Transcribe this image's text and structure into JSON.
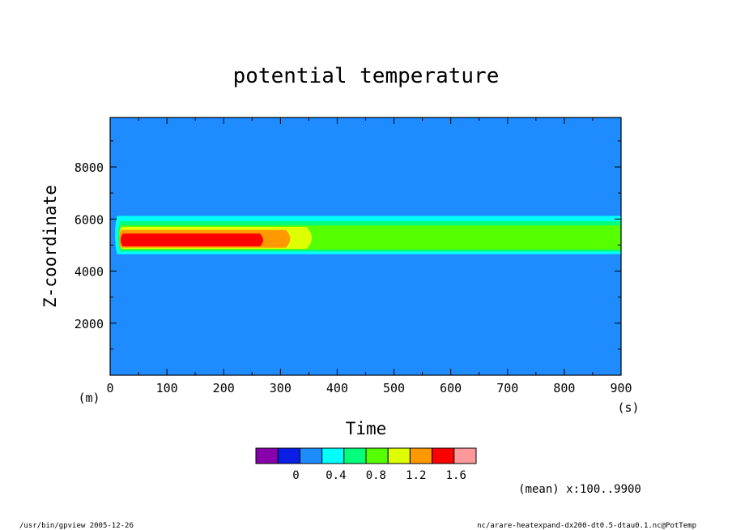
{
  "chart_data": {
    "type": "heatmap",
    "title": "potential temperature",
    "xlabel": "Time",
    "ylabel": "Z-coordinate",
    "xunit": "(s)",
    "yunit": "(m)",
    "xlim": [
      0,
      900
    ],
    "ylim": [
      0,
      9900
    ],
    "xticks": [
      "0",
      "100",
      "200",
      "300",
      "400",
      "500",
      "600",
      "700",
      "800",
      "900"
    ],
    "yticks": [
      "2000",
      "4000",
      "6000",
      "8000"
    ],
    "colorbar": {
      "levels": [
        -0.4,
        -0.2,
        0,
        0.2,
        0.4,
        0.6,
        0.8,
        1.0,
        1.2,
        1.4,
        1.6,
        1.8
      ],
      "labels": [
        "0",
        "0.4",
        "0.8",
        "1.2",
        "1.6"
      ],
      "colors": [
        "#8800aa",
        "#0a1ee6",
        "#1e8cff",
        "#00ffff",
        "#00ff7a",
        "#55ff00",
        "#ddff00",
        "#ff9900",
        "#ff0000",
        "#ff9999"
      ]
    },
    "background_value": 0.1,
    "contour_regions": [
      {
        "value_range": [
          0.2,
          0.4
        ],
        "color": "#1e8cff",
        "time_start": 0,
        "time_end": 900,
        "z_bottom": 4550,
        "z_top": 6300
      },
      {
        "value_range": [
          0.4,
          0.6
        ],
        "color": "#00ffff",
        "time_start": 5,
        "time_end": 900,
        "z_bottom": 4650,
        "z_top": 6120
      },
      {
        "value_range": [
          0.6,
          0.8
        ],
        "color": "#00ff7a",
        "time_start": 10,
        "time_end": 900,
        "z_bottom": 4750,
        "z_top": 5920
      },
      {
        "value_range": [
          0.8,
          1.0
        ],
        "color": "#55ff00",
        "time_start": 12,
        "time_end": 900,
        "z_bottom": 4820,
        "z_top": 5750
      },
      {
        "value_range": [
          1.0,
          1.2
        ],
        "color": "#ddff00",
        "time_start": 12,
        "time_end": 365,
        "z_bottom": 4850,
        "z_top": 5700
      },
      {
        "value_range": [
          1.2,
          1.4
        ],
        "color": "#ff9900",
        "time_start": 12,
        "time_end": 325,
        "z_bottom": 4900,
        "z_top": 5580
      },
      {
        "value_range": [
          1.4,
          1.6
        ],
        "color": "#ff0000",
        "time_start": 15,
        "time_end": 275,
        "z_bottom": 4950,
        "z_top": 5440
      }
    ],
    "annotation": "(mean) x:100..9900"
  },
  "footer": {
    "left": "/usr/bin/gpview  2005-12-26",
    "right": "nc/arare-heatexpand-dx200-dt0.5-dtau0.1.nc@PotTemp"
  }
}
